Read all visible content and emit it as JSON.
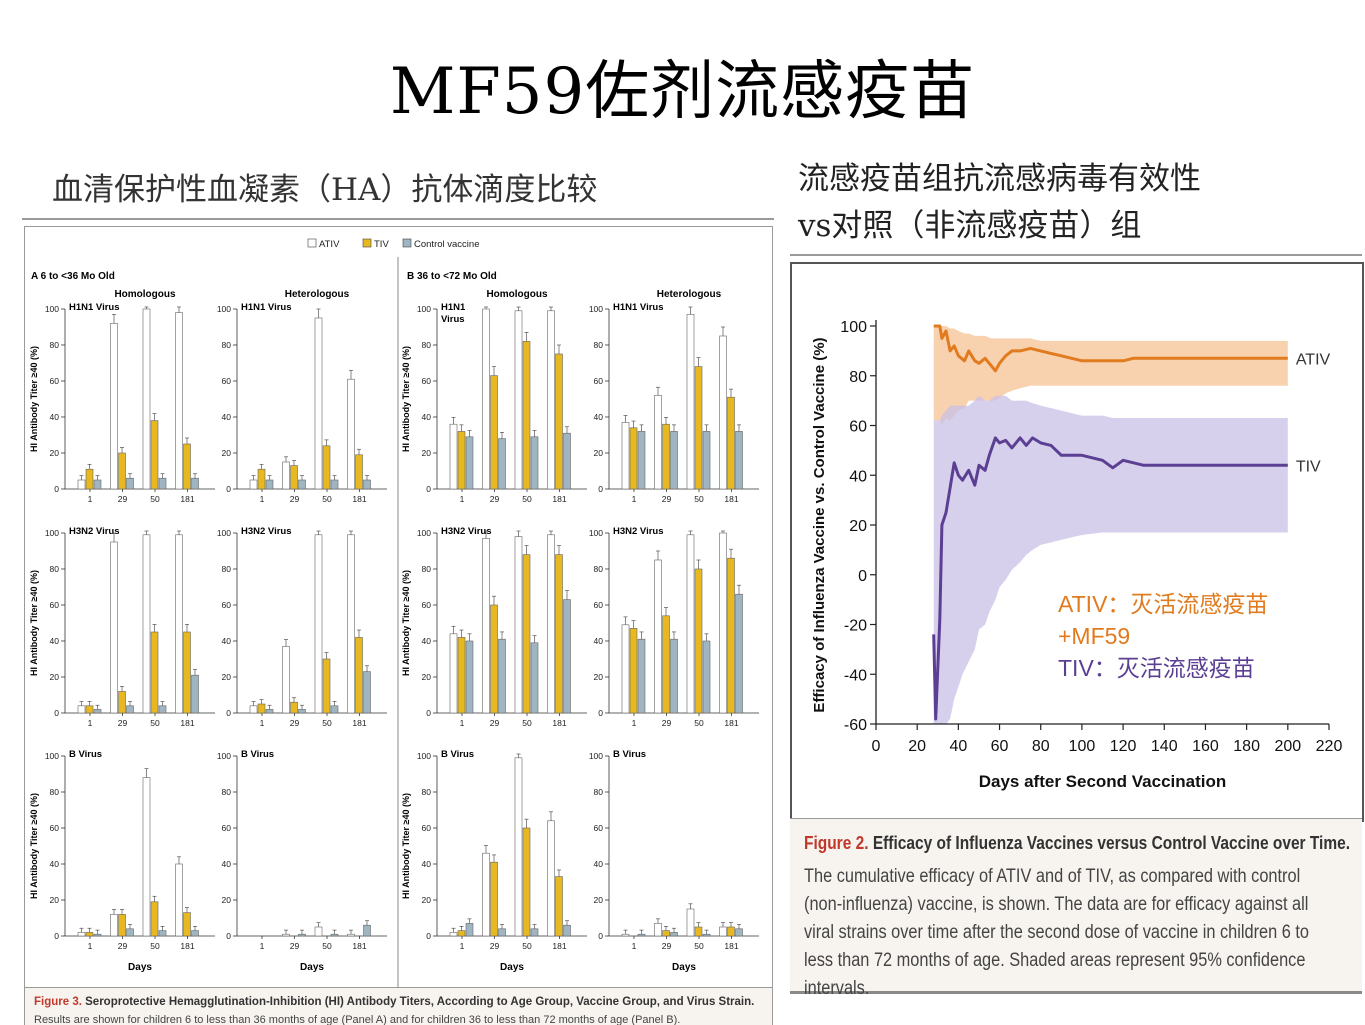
{
  "slide": {
    "title": "MF59佐剂流感疫苗",
    "left_subtitle": "血清保护性血凝素（HA）抗体滴度比较",
    "right_subtitle_line1": "流感疫苗组抗流感病毒有效性",
    "right_subtitle_line2": "vs对照（非流感疫苗）组"
  },
  "figure3": {
    "legend": [
      "ATIV",
      "TIV",
      "Control vaccine"
    ],
    "panelA": "A  6 to <36 Mo Old",
    "panelB": "B  36 to <72 Mo Old",
    "homologous": "Homologous",
    "heterologous": "Heterologous",
    "ylabel": "HI Antibody Titer ≥40 (%)",
    "xlabel": "Days",
    "caption_title_fig": "Figure 3.",
    "caption_title": "Seroprotective Hemagglutination-Inhibition (HI) Antibody Titers, According to Age Group, Vaccine Group, and Virus Strain.",
    "caption_body": "Results are shown for children 6 to less than 36 months of age (Panel A) and for children 36 to less than 72 months of age (Panel B)."
  },
  "figure2": {
    "caption_title_fig": "Figure 2.",
    "caption_title": "Efficacy of Influenza Vaccines versus Control Vaccine over Time.",
    "caption_body": "The cumulative efficacy of ATIV and of TIV, as compared with control (non-influenza) vaccine, is shown. The data are for efficacy against all viral strains over time after the second dose of vaccine in children 6 to less than 72 months of age. Shaded areas represent 95% confidence intervals.",
    "note_ativ_1": "ATIV：灭活流感疫苗",
    "note_ativ_2": "+MF59",
    "note_tiv": "TIV：灭活流感疫苗"
  },
  "chart_data": [
    {
      "type": "bar",
      "title": "Seroprotective HI Antibody Titers",
      "xlabel": "Days",
      "ylabel": "HI Antibody Titer ≥40 (%)",
      "ylim": [
        0,
        100
      ],
      "categories": [
        "1",
        "29",
        "50",
        "181"
      ],
      "series_names": [
        "ATIV",
        "TIV",
        "Control vaccine"
      ],
      "colors": {
        "ATIV": "#ffffff",
        "TIV": "#e8b820",
        "Control vaccine": "#9fb5c2"
      },
      "panels": [
        {
          "group": "A",
          "column": "Homologous",
          "virus": "H1N1 Virus",
          "ATIV": [
            5,
            92,
            100,
            98
          ],
          "TIV": [
            11,
            20,
            38,
            25
          ],
          "Control vaccine": [
            5,
            6,
            6,
            6
          ]
        },
        {
          "group": "A",
          "column": "Heterologous",
          "virus": "H1N1 Virus",
          "ATIV": [
            5,
            15,
            95,
            61
          ],
          "TIV": [
            11,
            13,
            24,
            19
          ],
          "Control vaccine": [
            5,
            5,
            5,
            5
          ]
        },
        {
          "group": "B",
          "column": "Homologous",
          "virus": "H1N1 Virus",
          "ATIV": [
            36,
            100,
            99,
            99
          ],
          "TIV": [
            32,
            63,
            82,
            75
          ],
          "Control vaccine": [
            29,
            28,
            29,
            31
          ]
        },
        {
          "group": "B",
          "column": "Heterologous",
          "virus": "H1N1 Virus",
          "ATIV": [
            37,
            52,
            97,
            85
          ],
          "TIV": [
            34,
            36,
            68,
            51
          ],
          "Control vaccine": [
            32,
            32,
            32,
            32
          ]
        },
        {
          "group": "A",
          "column": "Homologous",
          "virus": "H3N2 Virus",
          "ATIV": [
            4,
            95,
            99,
            99
          ],
          "TIV": [
            4,
            12,
            45,
            45
          ],
          "Control vaccine": [
            2,
            4,
            4,
            21
          ]
        },
        {
          "group": "A",
          "column": "Heterologous",
          "virus": "H3N2 Virus",
          "ATIV": [
            4,
            37,
            99,
            99
          ],
          "TIV": [
            5,
            6,
            30,
            42
          ],
          "Control vaccine": [
            2,
            2,
            4,
            23
          ]
        },
        {
          "group": "B",
          "column": "Homologous",
          "virus": "H3N2 Virus",
          "ATIV": [
            44,
            97,
            98,
            99
          ],
          "TIV": [
            42,
            60,
            88,
            88
          ],
          "Control vaccine": [
            40,
            41,
            39,
            63
          ]
        },
        {
          "group": "B",
          "column": "Heterologous",
          "virus": "H3N2 Virus",
          "ATIV": [
            49,
            85,
            99,
            100
          ],
          "TIV": [
            47,
            54,
            80,
            86
          ],
          "Control vaccine": [
            41,
            41,
            40,
            66
          ]
        },
        {
          "group": "A",
          "column": "Homologous",
          "virus": "B Virus",
          "ATIV": [
            2,
            12,
            88,
            40
          ],
          "TIV": [
            2,
            12,
            19,
            13
          ],
          "Control vaccine": [
            1,
            4,
            3,
            3
          ]
        },
        {
          "group": "A",
          "column": "Heterologous",
          "virus": "B Virus",
          "ATIV": [
            0,
            1,
            5,
            1
          ],
          "TIV": [
            0,
            0,
            0,
            0
          ],
          "Control vaccine": [
            0,
            1,
            1,
            6
          ]
        },
        {
          "group": "B",
          "column": "Homologous",
          "virus": "B Virus",
          "ATIV": [
            2,
            46,
            99,
            64
          ],
          "TIV": [
            3,
            41,
            60,
            33
          ],
          "Control vaccine": [
            7,
            4,
            4,
            6
          ]
        },
        {
          "group": "B",
          "column": "Heterologous",
          "virus": "B Virus",
          "ATIV": [
            1,
            7,
            15,
            5
          ],
          "TIV": [
            0,
            3,
            5,
            5
          ],
          "Control vaccine": [
            1,
            2,
            1,
            4
          ]
        }
      ]
    },
    {
      "type": "line",
      "title": "Efficacy of Influenza Vaccines versus Control Vaccine over Time",
      "xlabel": "Days after Second Vaccination",
      "ylabel": "Efficacy of Influenza Vaccine vs. Control Vaccine (%)",
      "xlim": [
        0,
        220
      ],
      "ylim": [
        -60,
        100
      ],
      "xticks": [
        0,
        20,
        40,
        60,
        80,
        100,
        120,
        140,
        160,
        180,
        200,
        220
      ],
      "yticks": [
        -60,
        -40,
        -20,
        0,
        20,
        40,
        60,
        80,
        100
      ],
      "series": [
        {
          "name": "ATIV",
          "color": "#e07b1f",
          "x": [
            28,
            31,
            32,
            34,
            36,
            38,
            40,
            43,
            45,
            48,
            50,
            53,
            56,
            58,
            60,
            63,
            66,
            70,
            75,
            80,
            85,
            90,
            95,
            100,
            110,
            120,
            125,
            140,
            160,
            180,
            200
          ],
          "y": [
            100,
            100,
            95,
            98,
            90,
            92,
            88,
            86,
            90,
            86,
            85,
            87,
            84,
            82,
            85,
            88,
            90,
            90,
            91,
            90,
            89,
            88,
            87,
            86,
            86,
            86,
            87,
            87,
            87,
            87,
            87
          ],
          "ci_lower": [
            62,
            62,
            60,
            63,
            62,
            64,
            66,
            67,
            70,
            70,
            70,
            70,
            70,
            70,
            71,
            73,
            74,
            75,
            76,
            76,
            76,
            76,
            76,
            76,
            76,
            76,
            76,
            76,
            76,
            76,
            76
          ],
          "ci_upper": [
            100,
            100,
            100,
            100,
            99,
            99,
            98,
            97,
            97,
            96,
            96,
            96,
            95,
            95,
            95,
            95,
            95,
            95,
            95,
            94,
            94,
            94,
            94,
            94,
            94,
            94,
            94,
            94,
            94,
            94,
            94
          ]
        },
        {
          "name": "TIV",
          "color": "#5b3f93",
          "x": [
            28,
            29,
            31,
            32,
            34,
            36,
            38,
            40,
            42,
            45,
            48,
            50,
            53,
            55,
            58,
            60,
            63,
            66,
            70,
            73,
            76,
            80,
            85,
            90,
            95,
            100,
            110,
            115,
            120,
            125,
            130,
            140,
            160,
            180,
            200
          ],
          "y": [
            -24,
            -58,
            -18,
            20,
            25,
            35,
            45,
            40,
            38,
            42,
            36,
            44,
            42,
            48,
            55,
            53,
            54,
            51,
            55,
            52,
            55,
            53,
            52,
            48,
            48,
            48,
            46,
            43,
            46,
            45,
            44,
            44,
            44,
            44,
            44
          ],
          "ci_lower": [
            -60,
            -60,
            -60,
            -60,
            -60,
            -58,
            -50,
            -45,
            -40,
            -35,
            -30,
            -22,
            -20,
            -15,
            -10,
            -5,
            -2,
            2,
            5,
            8,
            10,
            12,
            13,
            14,
            15,
            16,
            17,
            17,
            17,
            17,
            17,
            17,
            17,
            17,
            17
          ],
          "ci_upper": [
            62,
            62,
            62,
            64,
            66,
            68,
            68,
            68,
            68,
            68,
            70,
            72,
            70,
            70,
            72,
            72,
            72,
            70,
            70,
            70,
            69,
            68,
            67,
            66,
            65,
            64,
            64,
            63,
            63,
            63,
            63,
            63,
            63,
            63,
            63
          ]
        }
      ]
    }
  ]
}
